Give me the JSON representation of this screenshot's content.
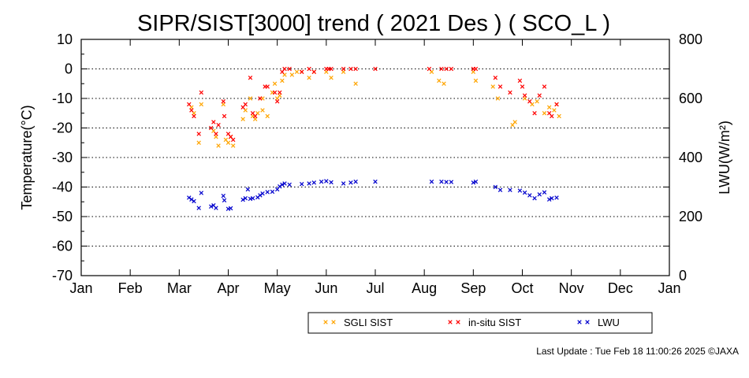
{
  "chart_data": {
    "type": "scatter",
    "title": "SIPR/SIST[3000] trend ( 2021 Des ) ( SCO_L )",
    "ylabel": "Temperature(°C)",
    "y2label": "LWU(W/m²)",
    "ylim": [
      -70,
      10
    ],
    "y2lim": [
      0,
      800
    ],
    "yticks": [
      "10",
      "0",
      "-10",
      "-20",
      "-30",
      "-40",
      "-50",
      "-60",
      "-70"
    ],
    "y2ticks": [
      "800",
      "600",
      "400",
      "200",
      "0"
    ],
    "x_months": [
      "Jan",
      "Feb",
      "Mar",
      "Apr",
      "May",
      "Jun",
      "Jul",
      "Aug",
      "Sep",
      "Oct",
      "Nov",
      "Dec",
      "Jan"
    ],
    "grid": "horizontal-dotted",
    "legend_position": "below",
    "marker": "x",
    "series": [
      {
        "name": "SGLI SIST",
        "color": "#ffa500",
        "axis": "left",
        "points": [
          [
            2.25,
            -13
          ],
          [
            2.3,
            -15
          ],
          [
            2.4,
            -25
          ],
          [
            2.45,
            -12
          ],
          [
            2.7,
            -21
          ],
          [
            2.75,
            -23
          ],
          [
            2.8,
            -26
          ],
          [
            2.9,
            -12
          ],
          [
            2.95,
            -24
          ],
          [
            3.0,
            -25
          ],
          [
            3.05,
            -23
          ],
          [
            3.1,
            -26
          ],
          [
            3.3,
            -17
          ],
          [
            3.35,
            -14
          ],
          [
            3.45,
            -10
          ],
          [
            3.5,
            -16
          ],
          [
            3.55,
            -17
          ],
          [
            3.6,
            -15
          ],
          [
            3.7,
            -14
          ],
          [
            3.8,
            -16
          ],
          [
            3.7,
            -10
          ],
          [
            3.9,
            -8
          ],
          [
            3.95,
            -5
          ],
          [
            4.0,
            -10
          ],
          [
            4.05,
            -9
          ],
          [
            4.1,
            -4
          ],
          [
            4.15,
            -2
          ],
          [
            4.3,
            -2
          ],
          [
            4.4,
            -1
          ],
          [
            4.5,
            -1
          ],
          [
            4.65,
            -3
          ],
          [
            4.75,
            -1
          ],
          [
            5.0,
            -1
          ],
          [
            5.1,
            -3
          ],
          [
            5.35,
            -1
          ],
          [
            5.6,
            -5
          ],
          [
            7.15,
            -1
          ],
          [
            7.3,
            -4
          ],
          [
            7.4,
            -5
          ],
          [
            8.0,
            -1
          ],
          [
            8.05,
            -4
          ],
          [
            8.4,
            -6
          ],
          [
            8.5,
            -10
          ],
          [
            8.8,
            -19
          ],
          [
            8.85,
            -18
          ],
          [
            9.05,
            -10
          ],
          [
            9.2,
            -12
          ],
          [
            9.3,
            -11
          ],
          [
            9.45,
            -15
          ],
          [
            9.55,
            -13
          ],
          [
            9.65,
            -14
          ],
          [
            9.75,
            -16
          ],
          [
            9.7,
            -12
          ]
        ]
      },
      {
        "name": "in-situ SIST",
        "color": "#ff0000",
        "axis": "left",
        "points": [
          [
            2.2,
            -12
          ],
          [
            2.25,
            -14
          ],
          [
            2.3,
            -16
          ],
          [
            2.4,
            -22
          ],
          [
            2.45,
            -8
          ],
          [
            2.65,
            -20
          ],
          [
            2.7,
            -18
          ],
          [
            2.75,
            -22
          ],
          [
            2.8,
            -19
          ],
          [
            2.9,
            -11
          ],
          [
            2.92,
            -16
          ],
          [
            3.0,
            -22
          ],
          [
            3.05,
            -23
          ],
          [
            3.1,
            -24
          ],
          [
            3.3,
            -13
          ],
          [
            3.35,
            -12
          ],
          [
            3.45,
            -3
          ],
          [
            3.5,
            -15
          ],
          [
            3.55,
            -16
          ],
          [
            3.65,
            -10
          ],
          [
            3.75,
            -6
          ],
          [
            3.8,
            -6
          ],
          [
            3.95,
            -8
          ],
          [
            4.0,
            -11
          ],
          [
            4.05,
            -8
          ],
          [
            4.1,
            -1
          ],
          [
            4.15,
            0
          ],
          [
            4.25,
            0
          ],
          [
            4.5,
            -1
          ],
          [
            4.65,
            0
          ],
          [
            4.75,
            -1
          ],
          [
            5.0,
            0
          ],
          [
            5.05,
            0
          ],
          [
            5.1,
            0
          ],
          [
            5.35,
            0
          ],
          [
            5.5,
            0
          ],
          [
            5.6,
            0
          ],
          [
            6.0,
            0
          ],
          [
            7.1,
            0
          ],
          [
            7.35,
            0
          ],
          [
            7.45,
            0
          ],
          [
            7.55,
            0
          ],
          [
            8.0,
            0
          ],
          [
            8.05,
            0
          ],
          [
            8.45,
            -3
          ],
          [
            8.55,
            -6
          ],
          [
            8.75,
            -8
          ],
          [
            8.95,
            -4
          ],
          [
            9.0,
            -6
          ],
          [
            9.05,
            -9
          ],
          [
            9.15,
            -11
          ],
          [
            9.25,
            -15
          ],
          [
            9.35,
            -9
          ],
          [
            9.45,
            -6
          ],
          [
            9.55,
            -15
          ],
          [
            9.6,
            -16
          ],
          [
            9.7,
            -12
          ]
        ]
      },
      {
        "name": "LWU",
        "color": "#0000cd",
        "axis": "right",
        "points": [
          [
            2.2,
            264
          ],
          [
            2.25,
            258
          ],
          [
            2.3,
            252
          ],
          [
            2.4,
            229
          ],
          [
            2.45,
            280
          ],
          [
            2.65,
            234
          ],
          [
            2.7,
            238
          ],
          [
            2.75,
            229
          ],
          [
            2.9,
            270
          ],
          [
            2.92,
            255
          ],
          [
            3.0,
            226
          ],
          [
            3.05,
            228
          ],
          [
            3.3,
            257
          ],
          [
            3.35,
            262
          ],
          [
            3.4,
            292
          ],
          [
            3.45,
            260
          ],
          [
            3.5,
            262
          ],
          [
            3.6,
            265
          ],
          [
            3.65,
            272
          ],
          [
            3.7,
            278
          ],
          [
            3.8,
            283
          ],
          [
            3.9,
            284
          ],
          [
            4.0,
            292
          ],
          [
            4.05,
            302
          ],
          [
            4.1,
            308
          ],
          [
            4.15,
            312
          ],
          [
            4.25,
            308
          ],
          [
            4.5,
            310
          ],
          [
            4.65,
            312
          ],
          [
            4.75,
            315
          ],
          [
            4.9,
            318
          ],
          [
            5.0,
            320
          ],
          [
            5.1,
            316
          ],
          [
            5.35,
            312
          ],
          [
            5.5,
            315
          ],
          [
            5.6,
            318
          ],
          [
            6.0,
            318
          ],
          [
            7.15,
            318
          ],
          [
            7.35,
            318
          ],
          [
            7.45,
            317
          ],
          [
            7.55,
            317
          ],
          [
            8.0,
            315
          ],
          [
            8.05,
            318
          ],
          [
            8.45,
            300
          ],
          [
            8.55,
            290
          ],
          [
            8.75,
            290
          ],
          [
            8.95,
            288
          ],
          [
            9.05,
            281
          ],
          [
            9.15,
            272
          ],
          [
            9.25,
            262
          ],
          [
            9.35,
            275
          ],
          [
            9.45,
            282
          ],
          [
            9.55,
            258
          ],
          [
            9.6,
            262
          ],
          [
            9.7,
            264
          ]
        ]
      }
    ]
  },
  "footer": {
    "last_update": "Last Update : Tue Feb 18 11:00:26 2025  ©JAXA"
  }
}
